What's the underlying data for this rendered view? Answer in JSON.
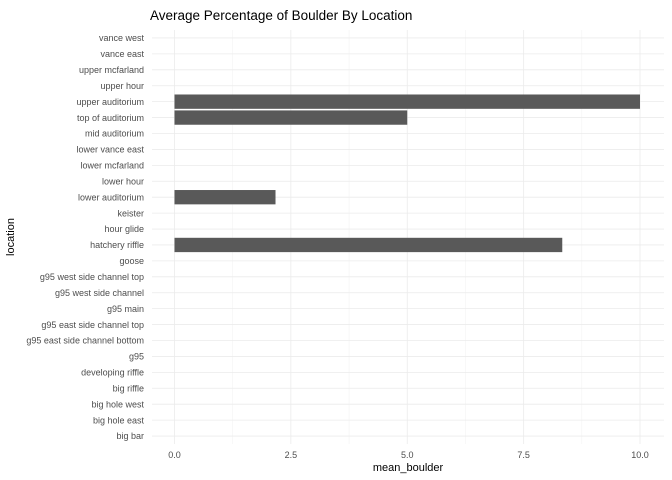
{
  "chart_data": {
    "type": "bar",
    "orientation": "horizontal",
    "title": "Average Percentage of Boulder By Location",
    "xlabel": "mean_boulder",
    "ylabel": "location",
    "xlim": [
      0,
      10
    ],
    "x_ticks": [
      0,
      2.5,
      5,
      7.5,
      10
    ],
    "x_tick_labels": [
      "0.0",
      "2.5",
      "5.0",
      "7.5",
      "10.0"
    ],
    "grid": true,
    "legend": "none",
    "bar_color": "#595959",
    "categories": [
      "big bar",
      "big hole east",
      "big hole west",
      "big riffle",
      "developing riffle",
      "g95",
      "g95 east side channel bottom",
      "g95 east side channel top",
      "g95 main",
      "g95 west side channel",
      "g95 west side channel top",
      "goose",
      "hatchery riffle",
      "hour glide",
      "keister",
      "lower auditorium",
      "lower hour",
      "lower mcfarland",
      "lower vance east",
      "mid auditorium",
      "top of auditorium",
      "upper auditorium",
      "upper hour",
      "upper mcfarland",
      "vance east",
      "vance west"
    ],
    "values": [
      0,
      0,
      0,
      0,
      0,
      0,
      0,
      0,
      0,
      0,
      0,
      0,
      8.33,
      0,
      0,
      2.17,
      0,
      0,
      0,
      0,
      5.0,
      10.0,
      0,
      0,
      0,
      0
    ]
  }
}
